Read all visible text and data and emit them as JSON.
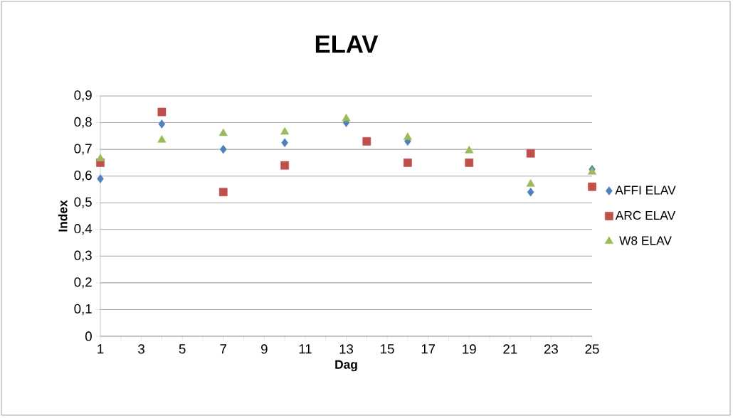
{
  "chart_data": {
    "type": "scatter",
    "title": "ELAV",
    "xlabel": "Dag",
    "ylabel": "Index",
    "xlim": [
      1,
      25
    ],
    "xticks": [
      1,
      3,
      5,
      7,
      9,
      11,
      13,
      15,
      17,
      19,
      21,
      23,
      25
    ],
    "ylim": [
      0,
      0.9
    ],
    "yticks": [
      {
        "value": 0,
        "label": "0"
      },
      {
        "value": 0.1,
        "label": "0,1"
      },
      {
        "value": 0.2,
        "label": "0,2"
      },
      {
        "value": 0.3,
        "label": "0,3"
      },
      {
        "value": 0.4,
        "label": "0,4"
      },
      {
        "value": 0.5,
        "label": "0,5"
      },
      {
        "value": 0.6,
        "label": "0,6"
      },
      {
        "value": 0.7,
        "label": "0,7"
      },
      {
        "value": 0.8,
        "label": "0,8"
      },
      {
        "value": 0.9,
        "label": "0,9"
      }
    ],
    "grid": "y",
    "legend": "right",
    "series": [
      {
        "name": "AFFI ELAV",
        "color": "#4f81bd",
        "marker": "diamond",
        "x": [
          1,
          4,
          7,
          10,
          13,
          16,
          19,
          22,
          25
        ],
        "values": [
          0.59,
          0.795,
          0.7,
          0.725,
          0.8,
          0.73,
          null,
          0.54,
          0.625
        ]
      },
      {
        "name": "ARC ELAV",
        "color": "#c0504d",
        "marker": "square",
        "x": [
          1,
          4,
          7,
          10,
          14,
          16,
          19,
          22,
          25
        ],
        "values": [
          0.65,
          0.84,
          0.54,
          0.64,
          0.73,
          0.65,
          0.65,
          0.685,
          0.56
        ]
      },
      {
        "name": "W8 ELAV",
        "color": "#9bbb59",
        "marker": "triangle",
        "x": [
          1,
          4,
          7,
          10,
          13,
          16,
          19,
          22,
          25
        ],
        "values": [
          0.665,
          0.735,
          0.76,
          0.765,
          0.815,
          0.745,
          0.695,
          0.57,
          0.615
        ]
      }
    ]
  }
}
